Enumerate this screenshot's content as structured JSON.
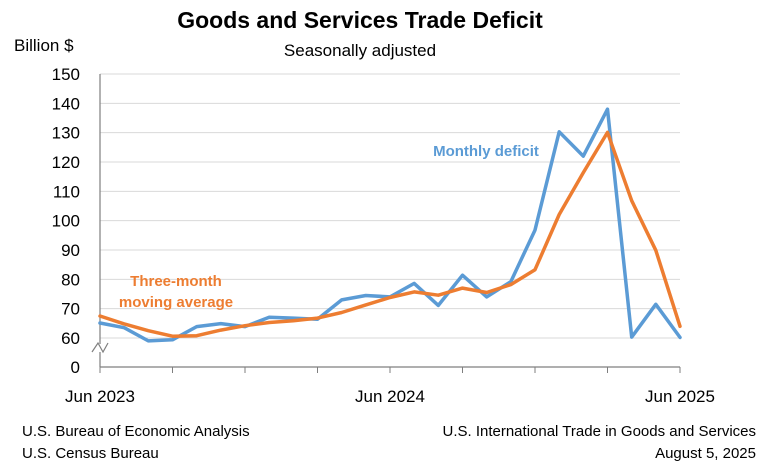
{
  "chart_data": {
    "type": "line",
    "title": "Goods and Services Trade Deficit",
    "subtitle": "Seasonally adjusted",
    "ylabel": "Billion $",
    "ylim": [
      0,
      150
    ],
    "yticks": [
      0,
      60,
      70,
      80,
      90,
      100,
      110,
      120,
      130,
      140,
      150
    ],
    "axis_break": "between 0 and 60",
    "x_tick_labels": [
      "Jun 2023",
      "Jun 2024",
      "Jun 2025"
    ],
    "x": [
      "Jun 2023",
      "Jul 2023",
      "Aug 2023",
      "Sep 2023",
      "Oct 2023",
      "Nov 2023",
      "Dec 2023",
      "Jan 2024",
      "Feb 2024",
      "Mar 2024",
      "Apr 2024",
      "May 2024",
      "Jun 2024",
      "Jul 2024",
      "Aug 2024",
      "Sep 2024",
      "Oct 2024",
      "Nov 2024",
      "Dec 2024",
      "Jan 2025",
      "Feb 2025",
      "Mar 2025",
      "Apr 2025",
      "May 2025",
      "Jun 2025"
    ],
    "series": [
      {
        "name": "Monthly deficit",
        "color": "#5b9bd5",
        "values": [
          65.1,
          63.5,
          59.0,
          59.4,
          63.9,
          64.9,
          63.9,
          67.1,
          66.8,
          66.4,
          73.0,
          74.5,
          74.0,
          78.6,
          71.1,
          81.4,
          74.0,
          79.2,
          96.8,
          130.3,
          122.0,
          138.0,
          60.3,
          71.5,
          60.2
        ]
      },
      {
        "name": "Three-month moving average",
        "color": "#ed7d31",
        "values": [
          67.5,
          64.8,
          62.5,
          60.6,
          60.8,
          62.7,
          64.2,
          65.3,
          65.9,
          66.8,
          68.7,
          71.3,
          73.8,
          75.7,
          74.6,
          77.0,
          75.5,
          78.2,
          83.3,
          102.1,
          116.4,
          130.1,
          106.8,
          89.9,
          64.0
        ]
      }
    ],
    "series_labels": {
      "monthly": "Monthly deficit",
      "moving_line1": "Three-month",
      "moving_line2": "moving average"
    }
  },
  "footer": {
    "left_line1": "U.S. Bureau of Economic Analysis",
    "left_line2": "U.S. Census Bureau",
    "right_line1": "U.S. International Trade in Goods and Services",
    "right_line2": "August 5, 2025"
  }
}
